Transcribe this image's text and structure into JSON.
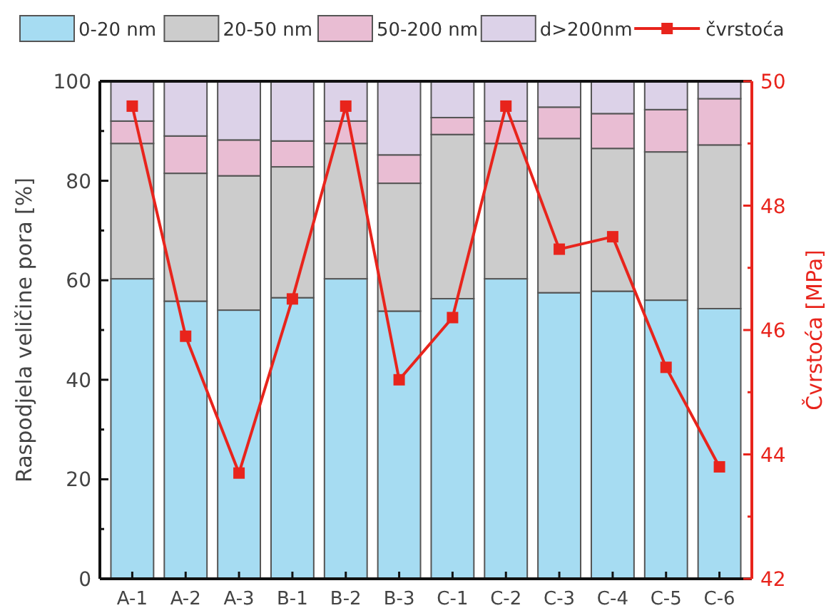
{
  "chart_data": {
    "type": "bar",
    "stacked": true,
    "ylabel": "Raspodjela veličine pora [%]",
    "y2label": "Čvrstoća [MPa]",
    "categories": [
      "A-1",
      "A-2",
      "A-3",
      "B-1",
      "B-2",
      "B-3",
      "C-1",
      "C-2",
      "C-3",
      "C-4",
      "C-5",
      "C-6"
    ],
    "series": [
      {
        "name": "0-20 nm",
        "color": "#a6dcf2",
        "values": [
          60.3,
          55.8,
          54,
          56.5,
          60.3,
          53.8,
          56.3,
          60.3,
          57.5,
          57.8,
          56,
          54.3
        ]
      },
      {
        "name": "20-50 nm",
        "color": "#cccccc",
        "values": [
          27.2,
          25.7,
          27,
          26.3,
          27.2,
          25.7,
          33,
          27.2,
          31,
          28.7,
          29.8,
          32.9
        ]
      },
      {
        "name": "50-200 nm",
        "color": "#e9bdd3",
        "values": [
          4.5,
          7.5,
          7.2,
          5.2,
          4.5,
          5.7,
          3.4,
          4.5,
          6.3,
          7,
          8.5,
          9.3
        ]
      },
      {
        "name": "d>200nm",
        "color": "#dcd2e8",
        "values": [
          8,
          11,
          11.8,
          12,
          8,
          14.8,
          7.3,
          8,
          5.2,
          6.5,
          5.7,
          3.5
        ]
      },
      {
        "name": "čvrstoća",
        "type": "line",
        "axis": "y2",
        "color": "#e8241c",
        "marker": "square",
        "values": [
          49.6,
          45.9,
          43.7,
          46.5,
          49.6,
          45.2,
          46.2,
          49.6,
          47.3,
          47.5,
          45.4,
          43.8
        ]
      }
    ],
    "ylim": [
      0,
      100
    ],
    "yticks": [
      0,
      {
        "value": 10,
        "label": null
      },
      20,
      {
        "value": 30,
        "label": null
      },
      40,
      {
        "value": 50,
        "label": null
      },
      60,
      {
        "value": 70,
        "label": null
      },
      80,
      {
        "value": 90,
        "label": null
      },
      100
    ],
    "y2lim": [
      42,
      50
    ],
    "y2ticks": [
      42,
      {
        "value": 43,
        "label": null
      },
      44,
      {
        "value": 45,
        "label": null
      },
      46,
      {
        "value": 47,
        "label": null
      },
      48,
      {
        "value": 49,
        "label": null
      },
      50
    ],
    "legend": "top",
    "grid": false
  }
}
